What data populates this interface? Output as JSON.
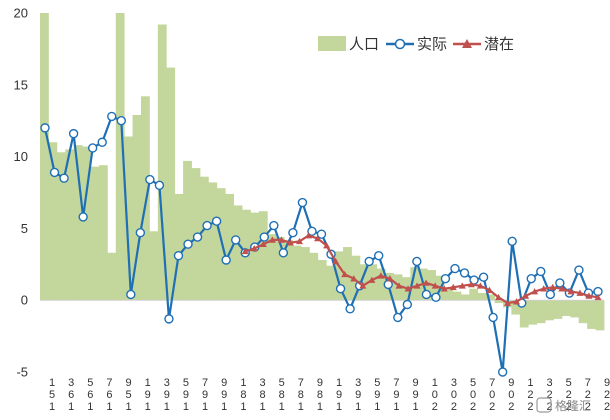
{
  "chart_data": {
    "type": "bar+line",
    "title": "",
    "xlabel": "",
    "ylabel": "",
    "ylim": [
      -5,
      20
    ],
    "yticks": [
      "20",
      "15",
      "10",
      "5",
      "0",
      "-5"
    ],
    "ytick_values": [
      20,
      15,
      10,
      5,
      0,
      -5
    ],
    "x_tick_labels": [
      "1",
      "3",
      "5",
      "7",
      "9",
      "1",
      "3",
      "5",
      "7",
      "9",
      "1",
      "3",
      "5",
      "7",
      "9",
      "1",
      "3",
      "5",
      "7",
      "9",
      "1",
      "3",
      "5",
      "7",
      "9",
      "1",
      "3",
      "5",
      "7",
      "9"
    ],
    "x_tick_labels_2": [
      "5",
      "6",
      "6",
      "6",
      "5",
      "9",
      "9",
      "9",
      "9",
      "9",
      "8",
      "8",
      "8",
      "8",
      "8",
      "9",
      "9",
      "9",
      "9",
      "9",
      "0",
      "0",
      "0",
      "0",
      "0",
      "2",
      "2",
      "2",
      "2",
      "2"
    ],
    "x_tick_labels_3": [
      "1",
      "1",
      "1",
      "1",
      "1",
      "1",
      "1",
      "1",
      "1",
      "1",
      "1",
      "1",
      "1",
      "1",
      "1",
      "1",
      "1",
      "1",
      "1",
      "1",
      "2",
      "2",
      "2",
      "2",
      "2",
      "2",
      "2",
      "2",
      "2",
      "2"
    ],
    "legend": [
      {
        "label": "人口",
        "color": "#c3d69b",
        "kind": "bar"
      },
      {
        "label": "实际",
        "color": "#1f6fb5",
        "kind": "line-circle"
      },
      {
        "label": "潜在",
        "color": "#c0504d",
        "kind": "line-triangle"
      }
    ],
    "series": [
      {
        "name": "人口",
        "values": [
          21,
          11,
          10.3,
          10.5,
          10.8,
          10.7,
          9.3,
          9.4,
          3.3,
          21,
          11.4,
          12.9,
          14.2,
          4.8,
          19.2,
          16.2,
          7.4,
          9.7,
          9.2,
          8.6,
          8.2,
          7.8,
          7.4,
          6.6,
          6.3,
          6.1,
          6.2,
          4.6,
          4.4,
          4.2,
          3.8,
          3.7,
          3.3,
          2.8,
          2.4,
          3.4,
          3.7,
          3.1,
          2.5,
          2.5,
          2.2,
          1.9,
          1.8,
          1.6,
          2.3,
          2.2,
          2.1,
          1.7,
          0.8,
          0.6,
          0.4,
          0.8,
          0.5,
          0.4,
          -0.2,
          -0.5,
          -1.0,
          -1.9,
          -1.7,
          -1.6,
          -1.4,
          -1.3,
          -1.1,
          -1.2,
          -1.6,
          -2.0,
          -2.1
        ]
      },
      {
        "name": "实际",
        "values": [
          12,
          8.9,
          8.5,
          11.6,
          5.8,
          10.6,
          11.0,
          12.8,
          12.5,
          0.4,
          4.7,
          8.4,
          8.0,
          -1.3,
          3.1,
          3.9,
          4.4,
          5.2,
          5.5,
          2.8,
          4.2,
          3.3,
          3.7,
          4.4,
          5.2,
          3.3,
          4.7,
          6.8,
          4.8,
          4.6,
          3.2,
          0.8,
          -0.6,
          1.0,
          2.7,
          3.1,
          1.1,
          -1.2,
          -0.3,
          2.7,
          0.4,
          0.2,
          1.5,
          2.2,
          1.9,
          1.4,
          1.6,
          -1.2,
          -5.0,
          4.1,
          -0.2,
          1.5,
          2.0,
          0.4,
          1.2,
          0.5,
          2.1,
          0.5,
          0.6
        ]
      },
      {
        "name": "潜在",
        "start_index": 21,
        "values": [
          3.4,
          3.6,
          3.9,
          4.2,
          4.2,
          4.0,
          4.1,
          4.5,
          4.3,
          3.8,
          2.7,
          1.8,
          1.5,
          1.0,
          1.4,
          1.7,
          1.5,
          1.0,
          0.8,
          1.0,
          1.2,
          1.0,
          0.8,
          0.9,
          1.0,
          1.1,
          1.0,
          0.7,
          0.2,
          -0.2,
          -0.1,
          0.3,
          0.6,
          0.8,
          0.9,
          0.8,
          0.6,
          0.5,
          0.3,
          0.2
        ]
      }
    ],
    "watermark": "格隆汇"
  }
}
